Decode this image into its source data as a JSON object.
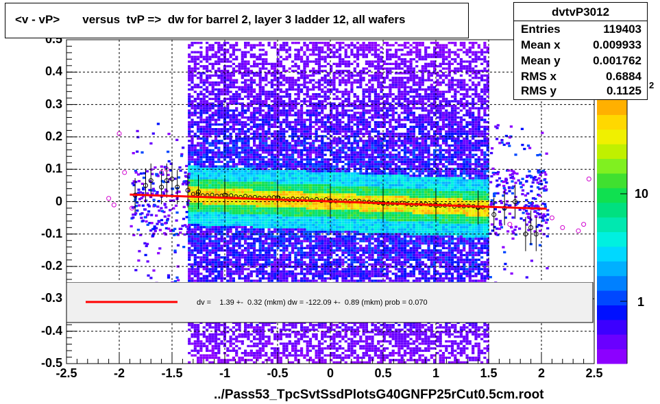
{
  "title": "<v - vP>       versus  tvP =>  dw for barrel 2, layer 3 ladder 12, all wafers",
  "stats": {
    "name": "dvtvP3012",
    "rows": [
      {
        "label": "Entries",
        "value": "119403"
      },
      {
        "label": "Mean x",
        "value": "0.009933"
      },
      {
        "label": "Mean y",
        "value": "0.001762"
      },
      {
        "label": "RMS x",
        "value": "0.6884"
      },
      {
        "label": "RMS y",
        "value": "0.1125"
      }
    ]
  },
  "legend": {
    "text": "dv =    1.39 +-  0.32 (mkm) dw = -122.09 +-  0.89 (mkm) prob = 0.070"
  },
  "footer": "../Pass53_TpcSvtSsdPlotsG40GNFP25rCut0.5cm.root",
  "palette": {
    "ticks": [
      "1",
      "10"
    ],
    "exponent": "2",
    "colors": [
      "#8c00ff",
      "#6a00ff",
      "#3c00ff",
      "#0010ff",
      "#0048ff",
      "#0080ff",
      "#00b0ff",
      "#00d8ff",
      "#00f0e0",
      "#00e8b0",
      "#00e080",
      "#10e050",
      "#40e030",
      "#80f020",
      "#c0f000",
      "#f0f000",
      "#ffd800",
      "#ffb000"
    ]
  },
  "chart_data": {
    "type": "heatmap",
    "x_ticks": [
      "-2.5",
      "-2",
      "-1.5",
      "-1",
      "-0.5",
      "0",
      "0.5",
      "1",
      "1.5",
      "2",
      "2.5"
    ],
    "y_ticks": [
      "-0.5",
      "-0.4",
      "-0.3",
      "-0.2",
      "-0.1",
      "0",
      "0.1",
      "0.2",
      "0.3",
      "0.4",
      "0.5"
    ],
    "xlim": [
      -2.5,
      2.5
    ],
    "ylim": [
      -0.5,
      0.5
    ],
    "grid": true,
    "fit_line": {
      "x": [
        -1.9,
        2.05
      ],
      "y": [
        0.022,
        -0.022
      ],
      "color": "#ff0000"
    },
    "profile_points": [
      {
        "x": -1.85,
        "y": 0.02
      },
      {
        "x": -1.75,
        "y": 0.05
      },
      {
        "x": -1.7,
        "y": 0.065
      },
      {
        "x": -1.6,
        "y": 0.045
      },
      {
        "x": -1.55,
        "y": 0.065
      },
      {
        "x": -1.5,
        "y": 0.07
      },
      {
        "x": -1.45,
        "y": 0.045
      },
      {
        "x": -1.35,
        "y": 0.035
      },
      {
        "x": -1.25,
        "y": 0.03
      },
      {
        "x": -1.0,
        "y": 0.02
      },
      {
        "x": -0.5,
        "y": 0.012
      },
      {
        "x": 0.0,
        "y": 0.003
      },
      {
        "x": 0.5,
        "y": -0.005
      },
      {
        "x": 1.0,
        "y": -0.012
      },
      {
        "x": 1.4,
        "y": -0.018
      },
      {
        "x": 1.55,
        "y": -0.04
      },
      {
        "x": 1.65,
        "y": -0.02
      },
      {
        "x": 1.75,
        "y": 0.0
      },
      {
        "x": 1.85,
        "y": -0.1
      },
      {
        "x": 1.9,
        "y": -0.08
      },
      {
        "x": 1.95,
        "y": -0.1
      }
    ],
    "magenta_points": [
      {
        "x": -2.1,
        "y": 0.01
      },
      {
        "x": -2.05,
        "y": -0.01
      },
      {
        "x": -2.0,
        "y": 0.21
      },
      {
        "x": -1.95,
        "y": 0.09
      },
      {
        "x": -1.88,
        "y": -0.02
      },
      {
        "x": -1.6,
        "y": 0.09
      },
      {
        "x": -1.55,
        "y": 0.1
      },
      {
        "x": 1.7,
        "y": -0.07
      },
      {
        "x": 2.1,
        "y": -0.05
      },
      {
        "x": 2.2,
        "y": -0.08
      },
      {
        "x": 2.35,
        "y": -0.09
      },
      {
        "x": 2.4,
        "y": -0.07
      },
      {
        "x": 2.45,
        "y": 0.07
      }
    ]
  }
}
